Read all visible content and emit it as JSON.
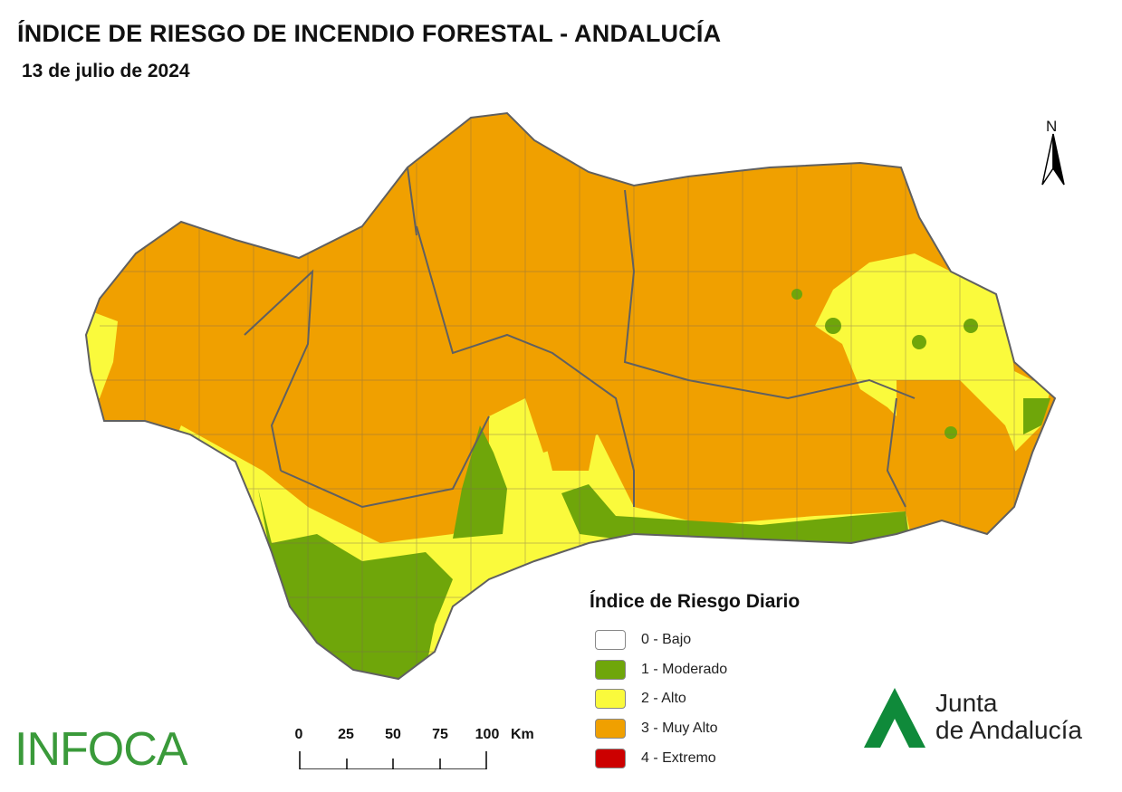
{
  "title": "ÍNDICE DE RIESGO DE INCENDIO FORESTAL - ANDALUCÍA",
  "subtitle": "13 de julio de 2024",
  "north_label": "N",
  "legend": {
    "title": "Índice de Riesgo Diario",
    "items": [
      {
        "label": "0 - Bajo",
        "color": "#ffffff"
      },
      {
        "label": "1 - Moderado",
        "color": "#6fa60a"
      },
      {
        "label": "2 - Alto",
        "color": "#fafa3c"
      },
      {
        "label": "3 - Muy Alto",
        "color": "#f0a000"
      },
      {
        "label": "4 - Extremo",
        "color": "#cc0000"
      }
    ]
  },
  "scale_bar": {
    "ticks": [
      "0",
      "25",
      "50",
      "75",
      "100"
    ],
    "unit": "Km"
  },
  "logos": {
    "infoca": "INFOCA",
    "junta_line1": "Junta",
    "junta_line2": "de Andalucía"
  },
  "colors": {
    "muy_alto": "#f0a000",
    "alto": "#fafa3c",
    "moderado": "#6fa60a",
    "border": "#666666",
    "junta_green": "#0f8a3a"
  }
}
